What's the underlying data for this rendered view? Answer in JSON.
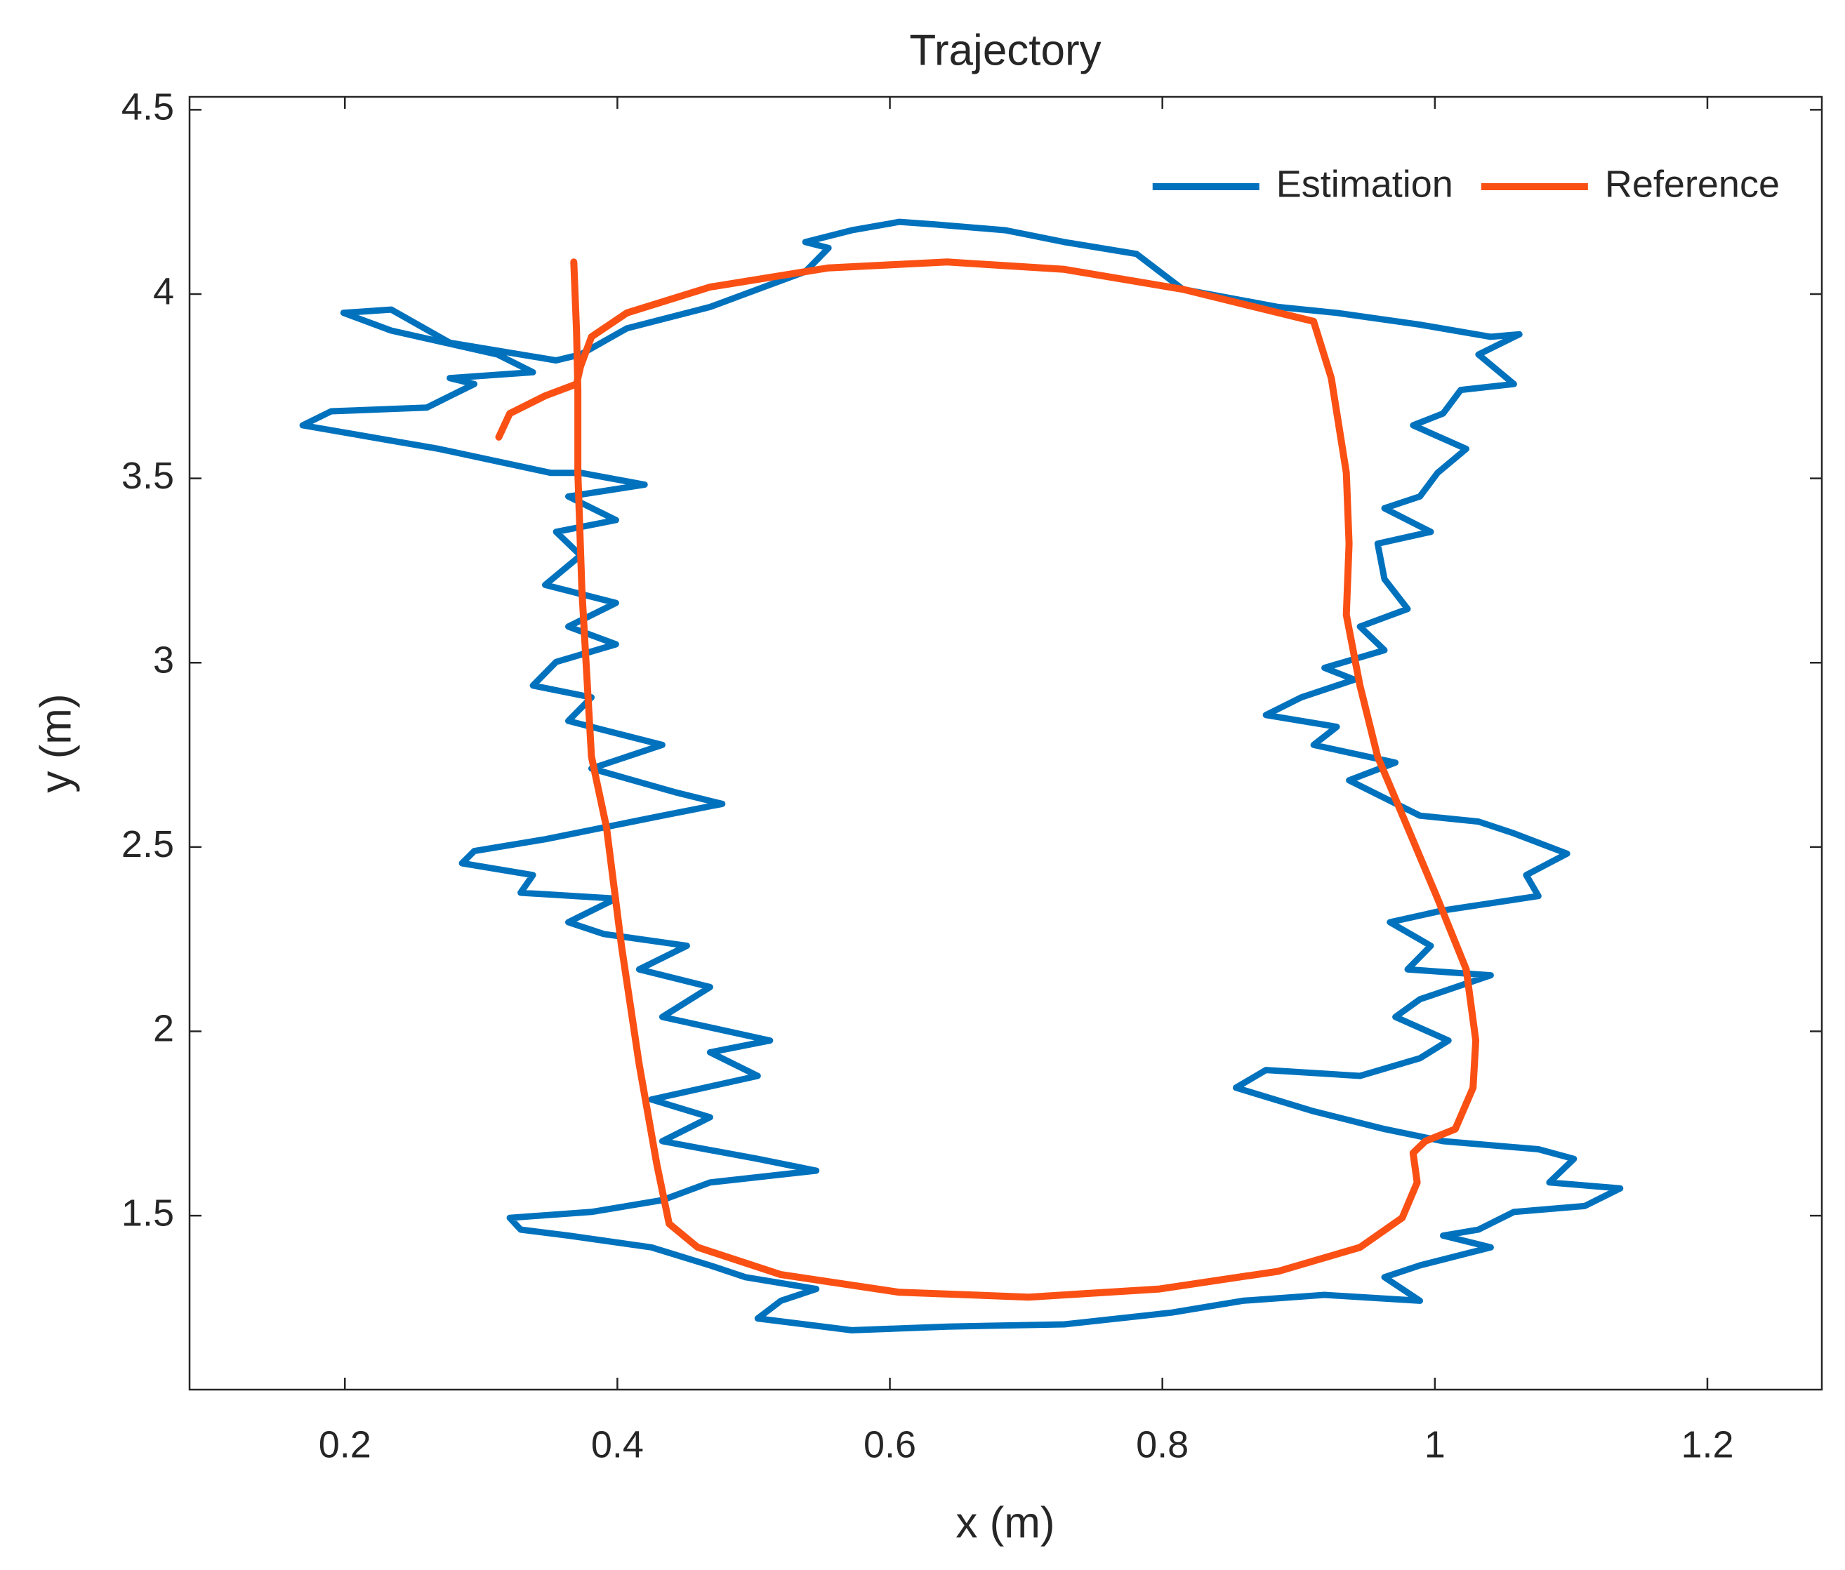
{
  "chart_data": {
    "type": "line",
    "title": "Trajectory",
    "x_label": "x (m)",
    "y_label": "y (m)",
    "xlim": [
      0.086,
      1.284
    ],
    "ylim": [
      1.028,
      4.535
    ],
    "xticks": [
      0.2,
      0.4,
      0.6,
      0.8,
      1,
      1.2
    ],
    "yticks": [
      1.5,
      2,
      2.5,
      3,
      3.5,
      4,
      4.5
    ],
    "legend": "northeast",
    "series": [
      {
        "name": "Estimation",
        "color": "#0072bd",
        "x": [
          0.351,
          0.269,
          0.169,
          0.19,
          0.26,
          0.295,
          0.277,
          0.338,
          0.312,
          0.234,
          0.199,
          0.234,
          0.277,
          0.355,
          0.373,
          0.407,
          0.468,
          0.503,
          0.538,
          0.555,
          0.538,
          0.572,
          0.607,
          0.633,
          0.685,
          0.728,
          0.781,
          0.815,
          0.885,
          0.928,
          0.989,
          1.041,
          1.062,
          1.032,
          1.058,
          1.019,
          1.006,
          0.984,
          1.023,
          1.002,
          0.989,
          0.963,
          0.997,
          0.958,
          0.963,
          0.98,
          0.945,
          0.963,
          0.919,
          0.941,
          0.902,
          0.876,
          0.928,
          0.911,
          0.971,
          0.937,
          0.989,
          1.032,
          1.058,
          1.097,
          1.067,
          1.076,
          1.006,
          0.967,
          0.997,
          0.98,
          1.041,
          0.989,
          0.971,
          1.01,
          0.989,
          0.945,
          0.876,
          0.854,
          0.911,
          0.963,
          1.006,
          1.076,
          1.102,
          1.084,
          1.136,
          1.11,
          1.058,
          1.032,
          1.006,
          1.041,
          0.989,
          0.963,
          0.989,
          0.919,
          0.859,
          0.807,
          0.728,
          0.642,
          0.572,
          0.503,
          0.52,
          0.546,
          0.494,
          0.468,
          0.425,
          0.364,
          0.329,
          0.321,
          0.381,
          0.433,
          0.468,
          0.546,
          0.503,
          0.433,
          0.468,
          0.425,
          0.503,
          0.468,
          0.512,
          0.433,
          0.468,
          0.416,
          0.451,
          0.39,
          0.364,
          0.399,
          0.329,
          0.338,
          0.286,
          0.295,
          0.347,
          0.433,
          0.477,
          0.442,
          0.381,
          0.433,
          0.399,
          0.364,
          0.381,
          0.338,
          0.355,
          0.399,
          0.364,
          0.399,
          0.347,
          0.373,
          0.355,
          0.399,
          0.364,
          0.42,
          0.373,
          0.351
        ],
        "values": [
          3.515,
          3.58,
          3.644,
          3.682,
          3.692,
          3.756,
          3.772,
          3.788,
          3.836,
          3.901,
          3.949,
          3.958,
          3.868,
          3.82,
          3.836,
          3.907,
          3.965,
          4.013,
          4.061,
          4.125,
          4.141,
          4.173,
          4.196,
          4.189,
          4.173,
          4.141,
          4.109,
          4.013,
          3.965,
          3.949,
          3.917,
          3.884,
          3.891,
          3.836,
          3.756,
          3.74,
          3.676,
          3.644,
          3.58,
          3.515,
          3.451,
          3.419,
          3.355,
          3.323,
          3.227,
          3.146,
          3.098,
          3.034,
          2.986,
          2.954,
          2.906,
          2.858,
          2.826,
          2.777,
          2.729,
          2.681,
          2.585,
          2.569,
          2.537,
          2.482,
          2.424,
          2.367,
          2.328,
          2.296,
          2.232,
          2.168,
          2.152,
          2.087,
          2.039,
          1.975,
          1.927,
          1.879,
          1.895,
          1.847,
          1.783,
          1.735,
          1.702,
          1.68,
          1.654,
          1.59,
          1.574,
          1.526,
          1.51,
          1.462,
          1.446,
          1.414,
          1.365,
          1.333,
          1.269,
          1.285,
          1.269,
          1.237,
          1.205,
          1.199,
          1.189,
          1.221,
          1.269,
          1.301,
          1.333,
          1.365,
          1.414,
          1.446,
          1.462,
          1.494,
          1.51,
          1.542,
          1.59,
          1.622,
          1.654,
          1.702,
          1.767,
          1.815,
          1.879,
          1.943,
          1.975,
          2.039,
          2.12,
          2.168,
          2.232,
          2.264,
          2.296,
          2.36,
          2.376,
          2.424,
          2.456,
          2.489,
          2.521,
          2.585,
          2.617,
          2.649,
          2.713,
          2.777,
          2.809,
          2.842,
          2.906,
          2.938,
          3.002,
          3.05,
          3.098,
          3.162,
          3.211,
          3.291,
          3.355,
          3.387,
          3.451,
          3.483,
          3.515,
          3.515
        ]
      },
      {
        "name": "Reference",
        "color": "#fa5014",
        "x": [
          0.313,
          0.321,
          0.347,
          0.37,
          0.373,
          0.381,
          0.407,
          0.468,
          0.555,
          0.642,
          0.728,
          0.815,
          0.911,
          0.924,
          0.935,
          0.937,
          0.935,
          0.945,
          0.958,
          0.98,
          1.002,
          1.023,
          1.03,
          1.028,
          1.015,
          0.993,
          0.984,
          0.987,
          0.976,
          0.945,
          0.885,
          0.798,
          0.702,
          0.607,
          0.52,
          0.459,
          0.438,
          0.429,
          0.416,
          0.403,
          0.392,
          0.381,
          0.379,
          0.374,
          0.371,
          0.371,
          0.37,
          0.368
        ],
        "values": [
          3.612,
          3.676,
          3.724,
          3.756,
          3.804,
          3.884,
          3.949,
          4.019,
          4.071,
          4.087,
          4.067,
          4.013,
          3.926,
          3.772,
          3.515,
          3.323,
          3.13,
          2.938,
          2.745,
          2.553,
          2.36,
          2.168,
          1.975,
          1.847,
          1.735,
          1.702,
          1.67,
          1.59,
          1.494,
          1.414,
          1.349,
          1.301,
          1.279,
          1.292,
          1.34,
          1.414,
          1.478,
          1.638,
          1.911,
          2.232,
          2.553,
          2.745,
          2.874,
          3.195,
          3.515,
          3.74,
          3.901,
          4.087
        ]
      }
    ]
  }
}
